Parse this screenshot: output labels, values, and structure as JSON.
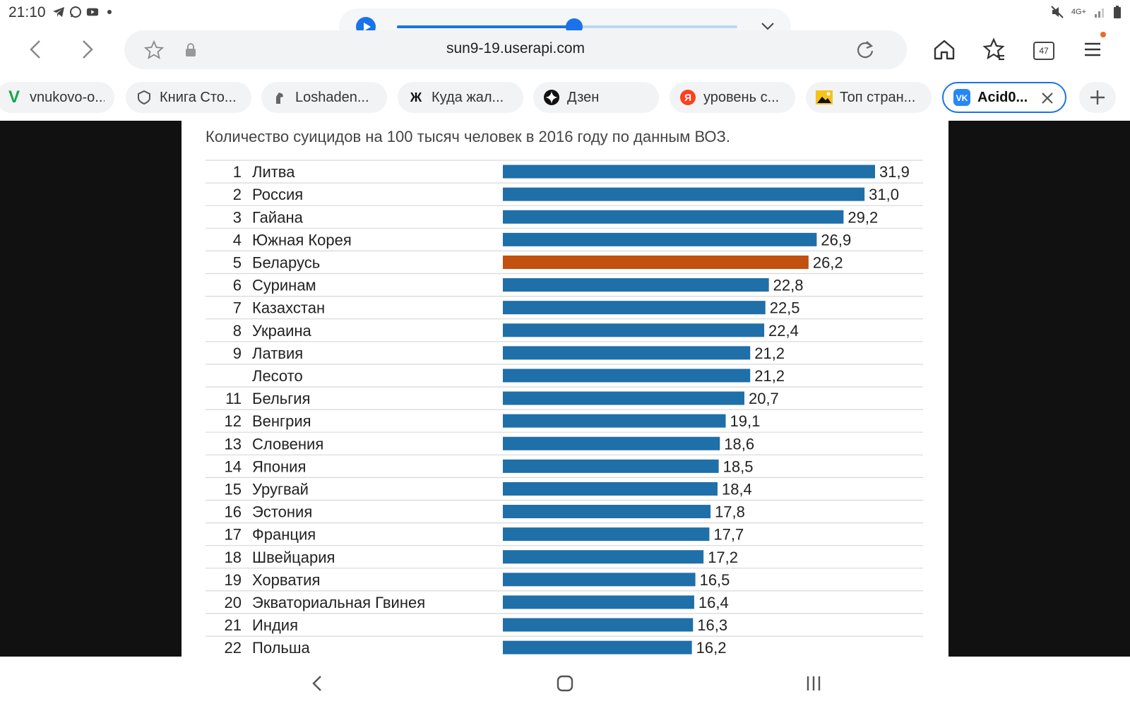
{
  "status_bar": {
    "time": "21:10",
    "left_icons": [
      "telegram-icon",
      "whatsapp-icon",
      "youtube-icon",
      "dot-icon"
    ],
    "right_icons": [
      "mute-icon",
      "4g-icon",
      "signal-icon",
      "battery-icon"
    ],
    "network": "4G+"
  },
  "media_player": {
    "progress": 0.52
  },
  "browser": {
    "url": "sun9-19.userapi.com",
    "tab_count": "47",
    "accent": "#1a73e8"
  },
  "tabs": [
    {
      "label": "vnukovo-o...",
      "icon": "v-logo-icon",
      "active": false
    },
    {
      "label": "Книга Сто...",
      "icon": "crest-icon",
      "active": false
    },
    {
      "label": "Loshaden...",
      "icon": "horse-icon",
      "active": false
    },
    {
      "label": "Куда жал...",
      "icon": "zh-logo-icon",
      "active": false
    },
    {
      "label": "Дзен",
      "icon": "dzen-icon",
      "active": false
    },
    {
      "label": "уровень с...",
      "icon": "yandex-icon",
      "active": false
    },
    {
      "label": "Топ стран...",
      "icon": "image-icon",
      "active": false
    },
    {
      "label": "Acid0...",
      "icon": "vk-icon",
      "active": true
    }
  ],
  "chart_data": {
    "type": "bar",
    "orientation": "horizontal",
    "title": "Количество суицидов на 100 тысяч человек в 2016 году по данным ВОЗ.",
    "xlim": [
      0,
      31.9
    ],
    "grid": false,
    "colors": {
      "default": "#1f6fa8",
      "highlight": "#c2500f"
    },
    "rows": [
      {
        "rank": "1",
        "country": "Литва",
        "value": 31.9,
        "label": "31,9"
      },
      {
        "rank": "2",
        "country": "Россия",
        "value": 31.0,
        "label": "31,0"
      },
      {
        "rank": "3",
        "country": "Гайана",
        "value": 29.2,
        "label": "29,2"
      },
      {
        "rank": "4",
        "country": "Южная Корея",
        "value": 26.9,
        "label": "26,9"
      },
      {
        "rank": "5",
        "country": "Беларусь",
        "value": 26.2,
        "label": "26,2",
        "highlight": true
      },
      {
        "rank": "6",
        "country": "Суринам",
        "value": 22.8,
        "label": "22,8"
      },
      {
        "rank": "7",
        "country": "Казахстан",
        "value": 22.5,
        "label": "22,5"
      },
      {
        "rank": "8",
        "country": "Украина",
        "value": 22.4,
        "label": "22,4"
      },
      {
        "rank": "9",
        "country": "Латвия",
        "value": 21.2,
        "label": "21,2"
      },
      {
        "rank": "",
        "country": "Лесото",
        "value": 21.2,
        "label": "21,2"
      },
      {
        "rank": "11",
        "country": "Бельгия",
        "value": 20.7,
        "label": "20,7"
      },
      {
        "rank": "12",
        "country": "Венгрия",
        "value": 19.1,
        "label": "19,1"
      },
      {
        "rank": "13",
        "country": "Словения",
        "value": 18.6,
        "label": "18,6"
      },
      {
        "rank": "14",
        "country": "Япония",
        "value": 18.5,
        "label": "18,5"
      },
      {
        "rank": "15",
        "country": "Уругвай",
        "value": 18.4,
        "label": "18,4"
      },
      {
        "rank": "16",
        "country": "Эстония",
        "value": 17.8,
        "label": "17,8"
      },
      {
        "rank": "17",
        "country": "Франция",
        "value": 17.7,
        "label": "17,7"
      },
      {
        "rank": "18",
        "country": "Швейцария",
        "value": 17.2,
        "label": "17,2"
      },
      {
        "rank": "19",
        "country": "Хорватия",
        "value": 16.5,
        "label": "16,5"
      },
      {
        "rank": "20",
        "country": "Экваториальная Гвинея",
        "value": 16.4,
        "label": "16,4"
      },
      {
        "rank": "21",
        "country": "Индия",
        "value": 16.3,
        "label": "16,3"
      },
      {
        "rank": "22",
        "country": "Польша",
        "value": 16.2,
        "label": "16,2"
      }
    ]
  }
}
